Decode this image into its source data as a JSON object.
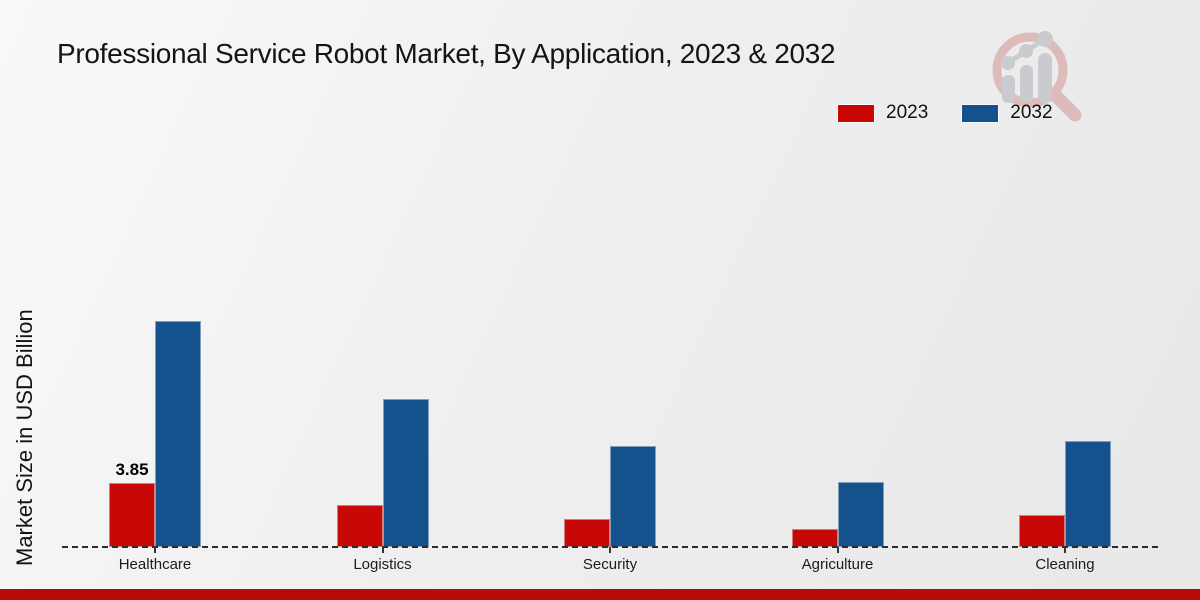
{
  "title": "Professional Service Robot Market, By Application, 2023 & 2032",
  "legend": {
    "position": "top-right",
    "items": [
      {
        "label": "2023",
        "color": "#c80707"
      },
      {
        "label": "2032",
        "color": "#15518c"
      }
    ]
  },
  "y_axis_label": "Market Size in USD Billion",
  "footer_accent_color": "#b80a0a",
  "logo": {
    "name": "magnifier-bar-chart-watermark",
    "lens_color": "#debbbb",
    "bars_color": "#c9cbce"
  },
  "chart_data": {
    "type": "bar",
    "title": "Professional Service Robot Market, By Application, 2023 & 2032",
    "xlabel": "",
    "ylabel": "Market Size in USD Billion",
    "categories": [
      "Healthcare",
      "Logistics",
      "Security",
      "Agriculture",
      "Cleaning"
    ],
    "series": [
      {
        "name": "2023",
        "color": "#c80707",
        "values": [
          3.85,
          2.5,
          1.7,
          1.1,
          1.9
        ],
        "data_labels": [
          "3.85",
          "",
          "",
          "",
          ""
        ]
      },
      {
        "name": "2032",
        "color": "#15518c",
        "values": [
          13.6,
          8.9,
          6.1,
          3.9,
          6.4
        ],
        "data_labels": [
          "",
          "",
          "",
          "",
          ""
        ]
      }
    ],
    "ylim": [
      0,
      15
    ],
    "grid": false,
    "axis_style": "dashed-baseline-only",
    "legend_position": "top-right"
  }
}
